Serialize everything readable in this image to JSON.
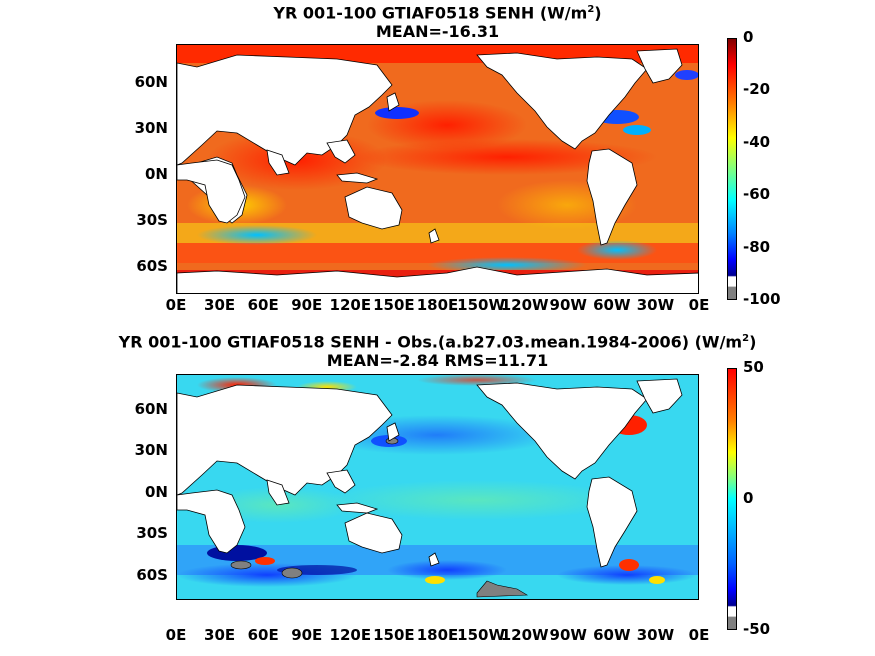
{
  "chart_data": [
    {
      "type": "heatmap",
      "title_prefix": "YR 001-100 GTIAF0518  SENH (W/m",
      "title_suffix": ")",
      "title_sup": "2",
      "subtitle": "MEAN=-16.31",
      "xlabel": "",
      "ylabel": "",
      "x_ticks": [
        "0E",
        "30E",
        "60E",
        "90E",
        "120E",
        "150E",
        "180E",
        "150W",
        "120W",
        "90W",
        "60W",
        "30W",
        "0E"
      ],
      "y_ticks": [
        "60N",
        "30N",
        "0N",
        "30S",
        "60S"
      ],
      "colorbar": {
        "min": -100,
        "max": 0,
        "ticks": [
          "0",
          "-20",
          "-40",
          "-60",
          "-80",
          "-100"
        ]
      },
      "colormap": "jet",
      "mean": -16.31
    },
    {
      "type": "heatmap",
      "title_prefix": "YR 001-100 GTIAF0518 SENH - Obs.(a.b27.03.mean.1984-2006) (W/m",
      "title_suffix": ")",
      "title_sup": "2",
      "subtitle": "MEAN=-2.84 RMS=11.71",
      "xlabel": "",
      "ylabel": "",
      "x_ticks": [
        "0E",
        "30E",
        "60E",
        "90E",
        "120E",
        "150E",
        "180E",
        "150W",
        "120W",
        "90W",
        "60W",
        "30W",
        "0E"
      ],
      "y_ticks": [
        "60N",
        "30N",
        "0N",
        "30S",
        "60S"
      ],
      "colorbar": {
        "min": -50,
        "max": 50,
        "ticks": [
          "50",
          "0",
          "-50"
        ]
      },
      "colormap": "jet",
      "mean": -2.84,
      "rms": 11.71
    }
  ],
  "colors": {
    "land": "#ffffff",
    "missing": "#808080",
    "panel1_ocean": "#f06a1e",
    "panel2_ocean": "#38d8f0"
  }
}
